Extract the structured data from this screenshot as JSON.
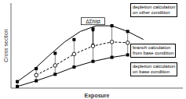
{
  "chart_data": {
    "type": "line",
    "xlabel": "Exposure",
    "ylabel": "Cross section",
    "xlim": [
      -0.04,
      1.05
    ],
    "ylim": [
      0.0,
      1.05
    ],
    "tick_labels": false,
    "grid": false,
    "series": [
      {
        "name": "depletion calculation\non base condition",
        "color": "#000000",
        "marker": "square",
        "line_style": "solid",
        "x": [
          0.0,
          0.12,
          0.24,
          0.36,
          0.48,
          0.6,
          0.7
        ],
        "values": [
          0.02,
          0.09,
          0.17,
          0.26,
          0.33,
          0.38,
          0.41
        ]
      },
      {
        "name": "depletion calculation\non other condition",
        "color": "#000000",
        "marker": "none",
        "line_style": "solid",
        "x": [
          0.0,
          0.1,
          0.2,
          0.3,
          0.4,
          0.5,
          0.6,
          0.7,
          0.8
        ],
        "values": [
          0.08,
          0.22,
          0.4,
          0.57,
          0.7,
          0.77,
          0.77,
          0.7,
          0.6
        ]
      },
      {
        "color": "#000000",
        "marker": "square",
        "line_style": "none",
        "x": [
          0.0,
          0.12,
          0.24,
          0.36,
          0.48,
          0.6,
          0.7
        ],
        "values": [
          0.08,
          0.24,
          0.43,
          0.6,
          0.73,
          0.77,
          0.7
        ]
      },
      {
        "name": "branch calculation\nfrom base condition",
        "color": "#000000",
        "marker": "circle",
        "line_style": "dashed",
        "x": [
          0.12,
          0.24,
          0.36,
          0.48,
          0.6,
          0.7
        ],
        "values": [
          0.16,
          0.28,
          0.42,
          0.52,
          0.57,
          0.56
        ]
      }
    ],
    "annotations": [
      {
        "text": "ΔΣhist",
        "x": 0.48,
        "y": [
          0.52,
          0.73
        ]
      }
    ]
  }
}
